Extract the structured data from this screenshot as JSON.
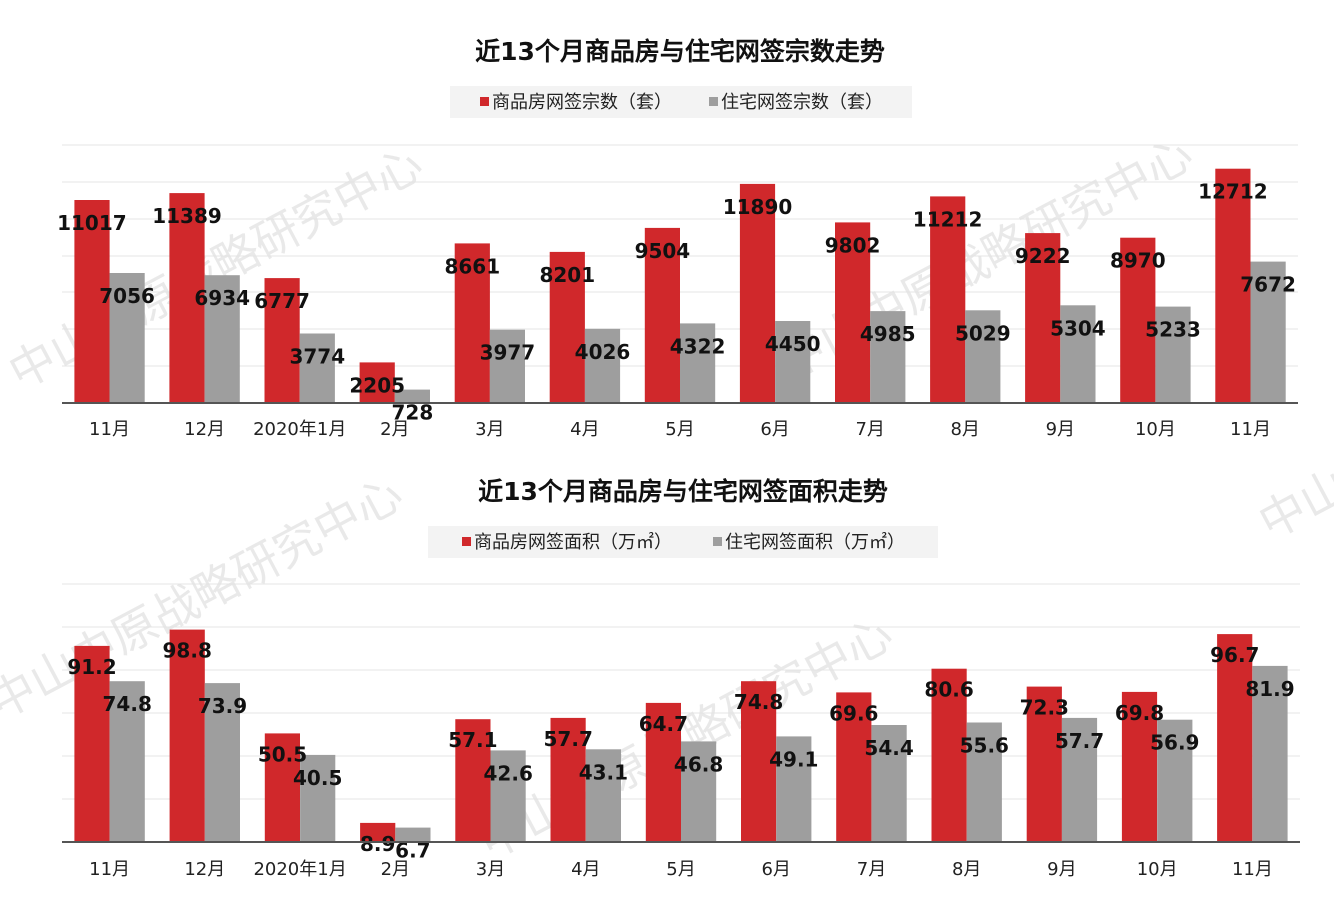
{
  "watermark": "中山中原战略研究中心",
  "colors": {
    "series_a": "#d0282b",
    "series_b": "#9e9e9e",
    "grid": "#e4e4e4",
    "axis": "#555555"
  },
  "chart_data": [
    {
      "type": "bar",
      "title": "近13个月商品房与住宅网签宗数走势",
      "categories": [
        "11月",
        "12月",
        "2020年1月",
        "2月",
        "3月",
        "4月",
        "5月",
        "6月",
        "7月",
        "8月",
        "9月",
        "10月",
        "11月"
      ],
      "series": [
        {
          "name": "商品房网签宗数（套）",
          "values": [
            11017,
            11389,
            6777,
            2205,
            8661,
            8201,
            9504,
            11890,
            9802,
            11212,
            9222,
            8970,
            12712
          ]
        },
        {
          "name": "住宅网签宗数（套）",
          "values": [
            7056,
            6934,
            3774,
            728,
            3977,
            4026,
            4322,
            4450,
            4985,
            5029,
            5304,
            5233,
            7672
          ]
        }
      ],
      "value_labels": [
        [
          "11017",
          "11389",
          "6777",
          "2205",
          "8661",
          "8201",
          "9504",
          "11890",
          "9802",
          "11212",
          "9222",
          "8970",
          "12712"
        ],
        [
          "7056",
          "6934",
          "3774",
          "728",
          "3977",
          "4026",
          "4322",
          "4450",
          "4985",
          "5029",
          "5304",
          "5233",
          "7672"
        ]
      ],
      "ylim": [
        0,
        14000
      ],
      "grid": true,
      "legend_position": "top-center"
    },
    {
      "type": "bar",
      "title": "近13个月商品房与住宅网签面积走势",
      "categories": [
        "11月",
        "12月",
        "2020年1月",
        "2月",
        "3月",
        "4月",
        "5月",
        "6月",
        "7月",
        "8月",
        "9月",
        "10月",
        "11月"
      ],
      "series": [
        {
          "name": "商品房网签面积（万㎡）",
          "values": [
            91.2,
            98.8,
            50.5,
            8.9,
            57.1,
            57.7,
            64.7,
            74.8,
            69.6,
            80.6,
            72.3,
            69.8,
            96.7
          ]
        },
        {
          "name": "住宅网签面积（万㎡）",
          "values": [
            74.8,
            73.9,
            40.5,
            6.7,
            42.6,
            43.1,
            46.8,
            49.1,
            54.4,
            55.6,
            57.7,
            56.9,
            81.9
          ]
        }
      ],
      "value_labels": [
        [
          "91.2",
          "98.8",
          "50.5",
          "8.9",
          "57.1",
          "57.7",
          "64.7",
          "74.8",
          "69.6",
          "80.6",
          "72.3",
          "69.8",
          "96.7"
        ],
        [
          "74.8",
          "73.9",
          "40.5",
          "6.7",
          "42.6",
          "43.1",
          "46.8",
          "49.1",
          "54.4",
          "55.6",
          "57.7",
          "56.9",
          "81.9"
        ]
      ],
      "ylim": [
        0,
        120
      ],
      "grid": true,
      "legend_position": "top-center"
    }
  ]
}
